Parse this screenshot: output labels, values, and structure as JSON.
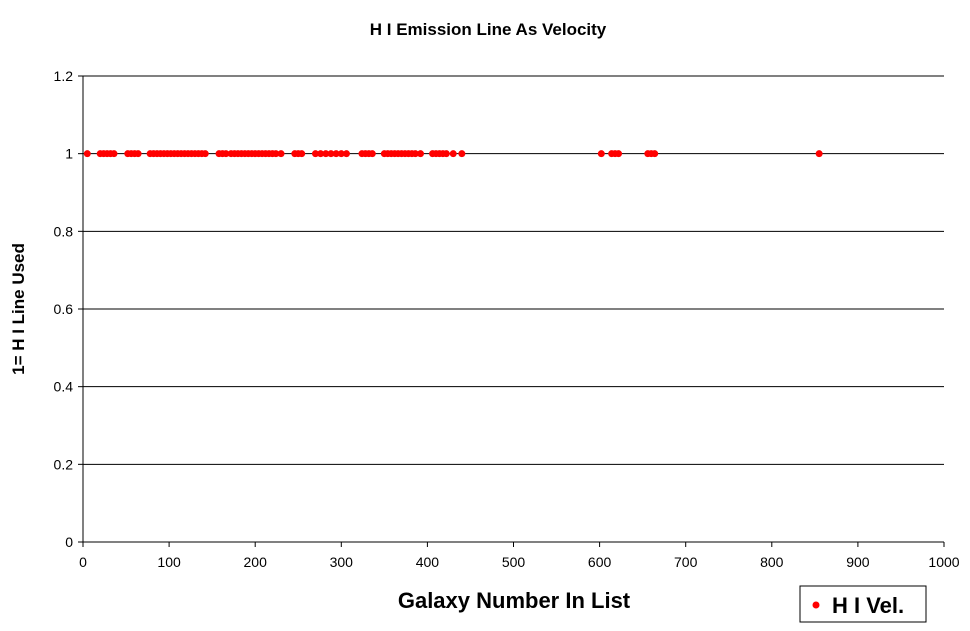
{
  "chart_data": {
    "type": "scatter",
    "title": "H I Emission Line As Velocity",
    "xlabel": "Galaxy Number In List",
    "ylabel": "1= H I Line Used",
    "xlim": [
      0,
      1000
    ],
    "ylim": [
      0,
      1.2
    ],
    "x_ticks": [
      0,
      100,
      200,
      300,
      400,
      500,
      600,
      700,
      800,
      900,
      1000
    ],
    "y_ticks": [
      "0",
      "0.2",
      "0.4",
      "0.6",
      "0.8",
      "1",
      "1.2"
    ],
    "grid": "horizontal major gridlines",
    "legend_position": "bottom-right",
    "series": [
      {
        "name": "H I Vel.",
        "color": "#ff0000",
        "marker": "circle",
        "x": [
          5,
          20,
          24,
          28,
          32,
          36,
          52,
          56,
          60,
          64,
          78,
          82,
          86,
          90,
          94,
          98,
          102,
          106,
          110,
          114,
          118,
          122,
          126,
          130,
          134,
          138,
          142,
          158,
          162,
          166,
          172,
          176,
          180,
          184,
          188,
          192,
          196,
          200,
          204,
          208,
          212,
          216,
          220,
          224,
          230,
          246,
          250,
          254,
          270,
          276,
          282,
          288,
          294,
          300,
          306,
          324,
          328,
          332,
          336,
          350,
          354,
          358,
          362,
          366,
          370,
          374,
          378,
          382,
          386,
          392,
          406,
          410,
          414,
          418,
          422,
          430,
          440,
          602,
          614,
          618,
          622,
          656,
          660,
          664,
          855
        ],
        "y": [
          1,
          1,
          1,
          1,
          1,
          1,
          1,
          1,
          1,
          1,
          1,
          1,
          1,
          1,
          1,
          1,
          1,
          1,
          1,
          1,
          1,
          1,
          1,
          1,
          1,
          1,
          1,
          1,
          1,
          1,
          1,
          1,
          1,
          1,
          1,
          1,
          1,
          1,
          1,
          1,
          1,
          1,
          1,
          1,
          1,
          1,
          1,
          1,
          1,
          1,
          1,
          1,
          1,
          1,
          1,
          1,
          1,
          1,
          1,
          1,
          1,
          1,
          1,
          1,
          1,
          1,
          1,
          1,
          1,
          1,
          1,
          1,
          1,
          1,
          1,
          1,
          1,
          1,
          1,
          1,
          1,
          1,
          1,
          1,
          1
        ]
      }
    ]
  }
}
